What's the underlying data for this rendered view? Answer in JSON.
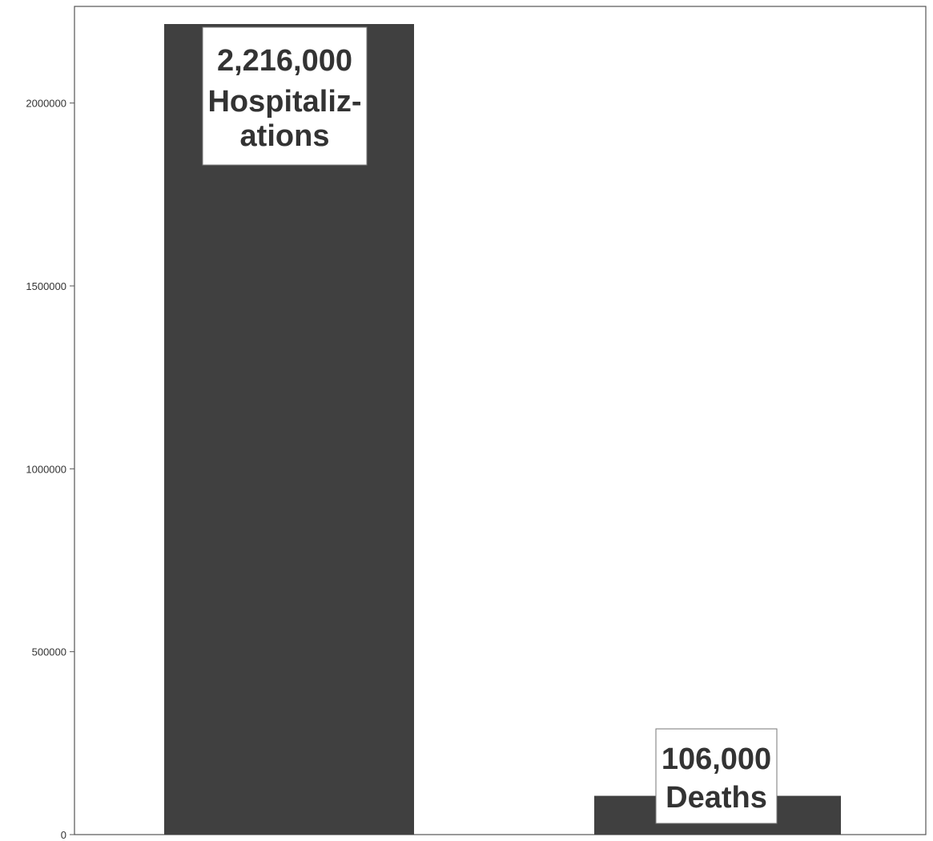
{
  "chart_data": {
    "type": "bar",
    "categories": [
      "",
      ""
    ],
    "values": [
      2216000,
      106000
    ],
    "bar_labels": [
      [
        "2,216,000",
        "Hospitaliz-",
        "ations"
      ],
      [
        "106,000",
        "Deaths"
      ]
    ],
    "title": "",
    "xlabel": "",
    "ylabel": "",
    "ylim": [
      0,
      2216000
    ],
    "yticks": [
      0,
      500000,
      1000000,
      1500000,
      2000000
    ],
    "ytick_labels": [
      "0",
      "500000",
      "1000000",
      "1500000",
      "2000000"
    ],
    "grid": false,
    "legend": "none",
    "colors": {
      "bar": "#404040",
      "label_box": "#ffffff",
      "text": "#333333",
      "axis": "#555555"
    }
  }
}
